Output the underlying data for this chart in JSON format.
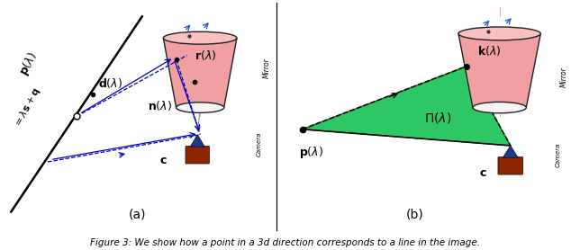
{
  "fig_width": 6.34,
  "fig_height": 2.78,
  "dpi": 100,
  "bg_color": "#ffffff",
  "caption": "Figure 3: We show how a point in a 3d direction corresponds to a line in the image.",
  "panel_a_label": "(a)",
  "panel_b_label": "(b)",
  "mirror_color": "#f0a0a0",
  "mirror_top_color": "#f8c0c0",
  "mirror_edge_color": "#222222",
  "camera_body_color": "#8B2500",
  "camera_lens_color": "#1a3a8c",
  "green_plane_color": "#00bb44",
  "dashed_color": "#0000bb",
  "label_color": "#000000"
}
